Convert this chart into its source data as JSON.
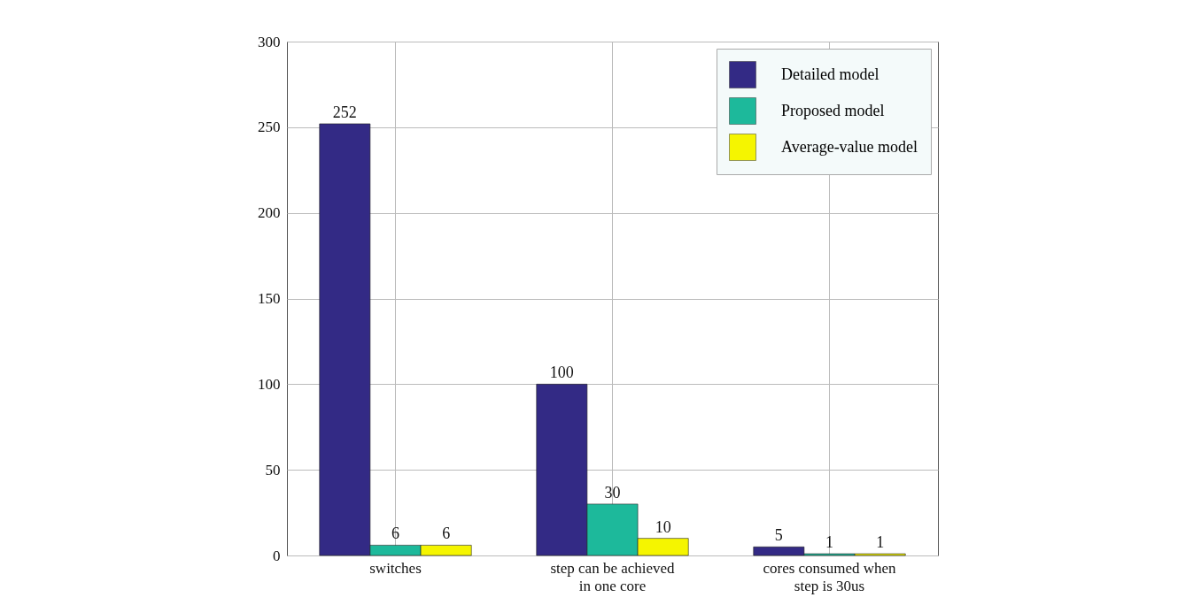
{
  "chart_data": {
    "type": "bar",
    "categories": [
      "switches",
      "step can be achieved in one core",
      "cores consumed when step is 30us"
    ],
    "series": [
      {
        "name": "Detailed model",
        "color": "#332a85",
        "values": [
          252,
          100,
          5
        ]
      },
      {
        "name": "Proposed model",
        "color": "#1db99b",
        "values": [
          6,
          30,
          1
        ]
      },
      {
        "name": "Average-value model",
        "color": "#f5f500",
        "values": [
          6,
          10,
          1
        ]
      }
    ],
    "ylim": [
      0,
      300
    ],
    "yticks": [
      0,
      50,
      100,
      150,
      200,
      250,
      300
    ],
    "grid": true,
    "legend": "top right",
    "data_labels": true
  }
}
